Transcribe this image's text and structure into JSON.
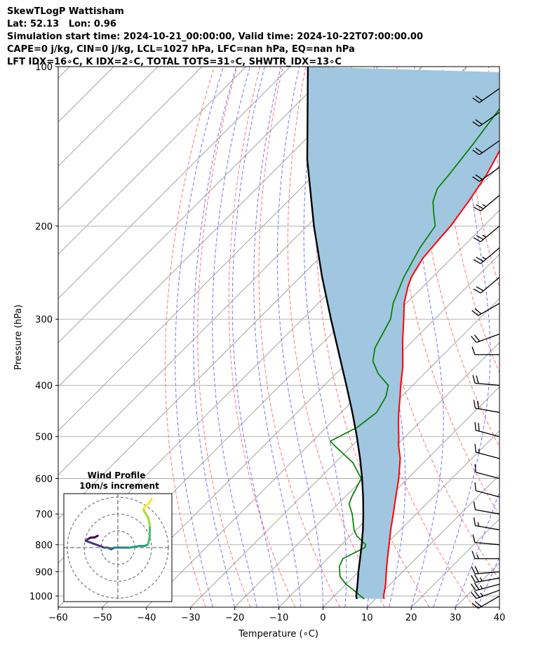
{
  "header": {
    "line1": "SkewTLogP Wattisham",
    "line2": "Lat: 52.13   Lon: 0.96",
    "line3": "Simulation start time: 2024-10-21_00:00:00, Valid time: 2024-10-22T07:00:00.00",
    "line4": "CAPE=0 j/kg, CIN=0 j/kg, LCL=1027 hPa, LFC=nan hPa, EQ=nan hPa",
    "line5": "LFT IDX=16∘C, K IDX=2∘C, TOTAL TOTS=31∘C, SHWTR_IDX=13∘C"
  },
  "chart_data": {
    "type": "line",
    "title": "SkewTLogP Wattisham",
    "xlabel": "Temperature (∘C)",
    "ylabel": "Pressure (hPa)",
    "xlim": [
      -60,
      40
    ],
    "ylim": [
      1050,
      100
    ],
    "y_scale": "log",
    "skew": "45 degrees",
    "grid": true,
    "x_ticks": [
      "−60",
      "−50",
      "−40",
      "−30",
      "−20",
      "−10",
      "0",
      "10",
      "20",
      "30",
      "40"
    ],
    "y_ticks": [
      "100",
      "200",
      "300",
      "400",
      "500",
      "600",
      "700",
      "800",
      "900",
      "1000"
    ],
    "series": [
      {
        "color": "#ff0000",
        "points": [
          [
            1013,
            12.0
          ],
          [
            1000,
            11.2
          ],
          [
            950,
            9.0
          ],
          [
            900,
            6.3
          ],
          [
            850,
            3.6
          ],
          [
            800,
            0.8
          ],
          [
            750,
            -2.2
          ],
          [
            700,
            -5.2
          ],
          [
            650,
            -8.5
          ],
          [
            600,
            -12.0
          ],
          [
            550,
            -16.2
          ],
          [
            520,
            -19.5
          ],
          [
            500,
            -21.5
          ],
          [
            470,
            -24.8
          ],
          [
            450,
            -27.0
          ],
          [
            420,
            -30.3
          ],
          [
            400,
            -32.7
          ],
          [
            370,
            -36.3
          ],
          [
            350,
            -39.2
          ],
          [
            330,
            -42.3
          ],
          [
            300,
            -47.0
          ],
          [
            280,
            -50.5
          ],
          [
            260,
            -53.5
          ],
          [
            250,
            -54.8
          ],
          [
            230,
            -56.5
          ],
          [
            210,
            -57.2
          ],
          [
            200,
            -57.5
          ],
          [
            180,
            -59.0
          ],
          [
            160,
            -61.0
          ],
          [
            150,
            -62.5
          ],
          [
            140,
            -64.2
          ],
          [
            130,
            -66.0
          ],
          [
            120,
            -68.0
          ],
          [
            110,
            -70.0
          ],
          [
            100,
            -72.0
          ]
        ]
      },
      {
        "color": "#008000",
        "points": [
          [
            1013,
            7.5
          ],
          [
            1000,
            6.0
          ],
          [
            970,
            2.5
          ],
          [
            950,
            0.0
          ],
          [
            920,
            -3.0
          ],
          [
            880,
            -5.5
          ],
          [
            850,
            -6.5
          ],
          [
            810,
            -4.0
          ],
          [
            800,
            -4.5
          ],
          [
            770,
            -8.5
          ],
          [
            750,
            -10.5
          ],
          [
            700,
            -14.5
          ],
          [
            670,
            -17.5
          ],
          [
            650,
            -18.5
          ],
          [
            600,
            -20.5
          ],
          [
            560,
            -26.0
          ],
          [
            520,
            -34.0
          ],
          [
            510,
            -36.0
          ],
          [
            480,
            -33.0
          ],
          [
            450,
            -32.0
          ],
          [
            420,
            -33.5
          ],
          [
            400,
            -35.5
          ],
          [
            380,
            -40.5
          ],
          [
            360,
            -44.5
          ],
          [
            340,
            -47.0
          ],
          [
            300,
            -50.0
          ],
          [
            280,
            -53.0
          ],
          [
            250,
            -56.5
          ],
          [
            220,
            -59.5
          ],
          [
            200,
            -61.0
          ],
          [
            190,
            -64.0
          ],
          [
            180,
            -67.0
          ],
          [
            170,
            -69.0
          ],
          [
            160,
            -69.5
          ],
          [
            140,
            -71.0
          ],
          [
            120,
            -73.0
          ],
          [
            100,
            -75.5
          ]
        ]
      },
      {
        "color": "#000000",
        "points": [
          [
            1013,
            5.8
          ],
          [
            1000,
            5.0
          ],
          [
            950,
            2.6
          ],
          [
            900,
            0.0
          ],
          [
            850,
            -2.6
          ],
          [
            800,
            -5.4
          ],
          [
            750,
            -8.5
          ],
          [
            700,
            -12.0
          ],
          [
            650,
            -15.9
          ],
          [
            600,
            -20.3
          ],
          [
            550,
            -25.3
          ],
          [
            500,
            -31.0
          ],
          [
            450,
            -37.5
          ],
          [
            400,
            -45.0
          ],
          [
            350,
            -53.6
          ],
          [
            300,
            -63.5
          ],
          [
            250,
            -75.0
          ],
          [
            200,
            -88.5
          ],
          [
            150,
            -105.0
          ],
          [
            100,
            -126.0
          ]
        ]
      }
    ],
    "wind_barbs": [
      {
        "p": 1000,
        "speed_kt": 20,
        "dir": 240
      },
      {
        "p": 975,
        "speed_kt": 25,
        "dir": 250
      },
      {
        "p": 950,
        "speed_kt": 25,
        "dir": 255
      },
      {
        "p": 925,
        "speed_kt": 25,
        "dir": 260
      },
      {
        "p": 900,
        "speed_kt": 20,
        "dir": 265
      },
      {
        "p": 850,
        "speed_kt": 15,
        "dir": 270
      },
      {
        "p": 800,
        "speed_kt": 10,
        "dir": 275
      },
      {
        "p": 750,
        "speed_kt": 15,
        "dir": 280
      },
      {
        "p": 700,
        "speed_kt": 10,
        "dir": 280
      },
      {
        "p": 650,
        "speed_kt": 10,
        "dir": 285
      },
      {
        "p": 600,
        "speed_kt": 10,
        "dir": 285
      },
      {
        "p": 550,
        "speed_kt": 15,
        "dir": 285
      },
      {
        "p": 500,
        "speed_kt": 20,
        "dir": 285
      },
      {
        "p": 450,
        "speed_kt": 20,
        "dir": 280
      },
      {
        "p": 400,
        "speed_kt": 20,
        "dir": 275
      },
      {
        "p": 350,
        "speed_kt": 10,
        "dir": 270
      },
      {
        "p": 320,
        "speed_kt": 20,
        "dir": 250
      },
      {
        "p": 280,
        "speed_kt": 20,
        "dir": 240
      },
      {
        "p": 250,
        "speed_kt": 20,
        "dir": 230
      },
      {
        "p": 220,
        "speed_kt": 25,
        "dir": 230
      },
      {
        "p": 200,
        "speed_kt": 25,
        "dir": 230
      },
      {
        "p": 175,
        "speed_kt": 25,
        "dir": 230
      },
      {
        "p": 155,
        "speed_kt": 20,
        "dir": 235
      },
      {
        "p": 138,
        "speed_kt": 20,
        "dir": 235
      },
      {
        "p": 122,
        "speed_kt": 20,
        "dir": 235
      },
      {
        "p": 110,
        "speed_kt": 20,
        "dir": 235
      }
    ],
    "inset": {
      "title": "Wind Profile",
      "subtitle": "10m/s increment",
      "hodograph": [
        [
          -12,
          7
        ],
        [
          -14,
          6
        ],
        [
          -16,
          6
        ],
        [
          -18,
          5
        ],
        [
          -19,
          4
        ],
        [
          -8,
          0
        ],
        [
          -6,
          0
        ],
        [
          -4,
          -1
        ],
        [
          -2,
          0
        ],
        [
          3,
          0
        ],
        [
          7,
          0
        ],
        [
          13,
          1
        ],
        [
          16,
          1
        ],
        [
          18,
          2
        ],
        [
          19,
          7
        ],
        [
          19,
          13
        ],
        [
          18,
          18
        ],
        [
          16,
          21
        ],
        [
          15,
          23
        ],
        [
          17,
          25
        ],
        [
          19,
          27
        ],
        [
          20,
          29
        ]
      ]
    }
  }
}
